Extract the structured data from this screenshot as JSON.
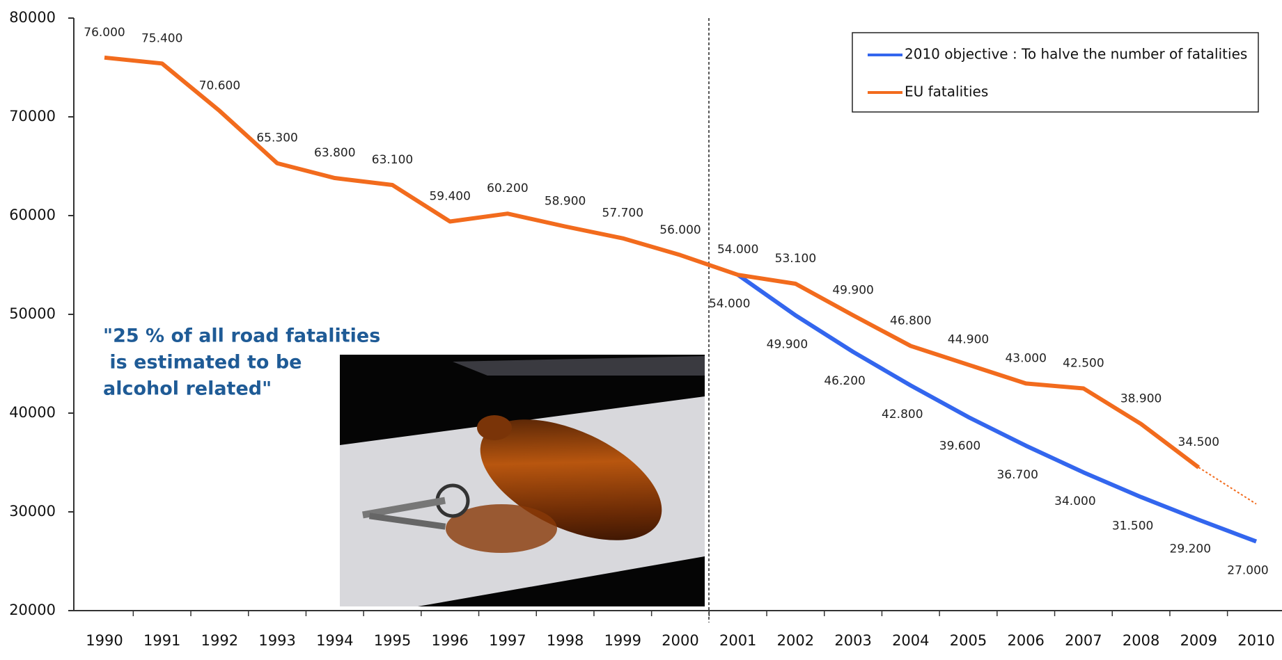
{
  "chart_data": {
    "type": "line",
    "categories": [
      "1990",
      "1991",
      "1992",
      "1993",
      "1994",
      "1995",
      "1996",
      "1997",
      "1998",
      "1999",
      "2000",
      "2001",
      "2002",
      "2003",
      "2004",
      "2005",
      "2006",
      "2007",
      "2008",
      "2009",
      "2010"
    ],
    "ylim": [
      20000,
      80000
    ],
    "yticks": [
      20000,
      30000,
      40000,
      50000,
      60000,
      70000,
      80000
    ],
    "series": [
      {
        "name": "2010 objective : To halve the number of fatalities",
        "color": "#3366ee",
        "values": [
          null,
          null,
          null,
          null,
          null,
          null,
          null,
          null,
          null,
          null,
          null,
          54000,
          49900,
          46200,
          42800,
          39600,
          36700,
          34000,
          31500,
          29200,
          27000
        ],
        "value_labels": [
          null,
          null,
          null,
          null,
          null,
          null,
          null,
          null,
          null,
          null,
          null,
          "54.000",
          "49.900",
          "46.200",
          "42.800",
          "39.600",
          "36.700",
          "34.000",
          "31.500",
          "29.200",
          "27.000"
        ]
      },
      {
        "name": "EU fatalities",
        "color": "#f26b1d",
        "values": [
          76000,
          75400,
          70600,
          65300,
          63800,
          63100,
          59400,
          60200,
          58900,
          57700,
          56000,
          54000,
          53100,
          49900,
          46800,
          44900,
          43000,
          42500,
          38900,
          34500,
          null
        ],
        "value_labels": [
          "76.000",
          "75.400",
          "70.600",
          "65.300",
          "63.800",
          "63.100",
          "59.400",
          "60.200",
          "58.900",
          "57.700",
          "56.000",
          "54.000",
          "53.100",
          "49.900",
          "46.800",
          "44.900",
          "43.000",
          "42.500",
          "38.900",
          "34.500",
          null
        ],
        "projection_2010": 30800
      }
    ],
    "legend": "upper right",
    "annotation": [
      "\"25 % of all road fatalities",
      " is estimated to be",
      "alcohol related\""
    ]
  }
}
